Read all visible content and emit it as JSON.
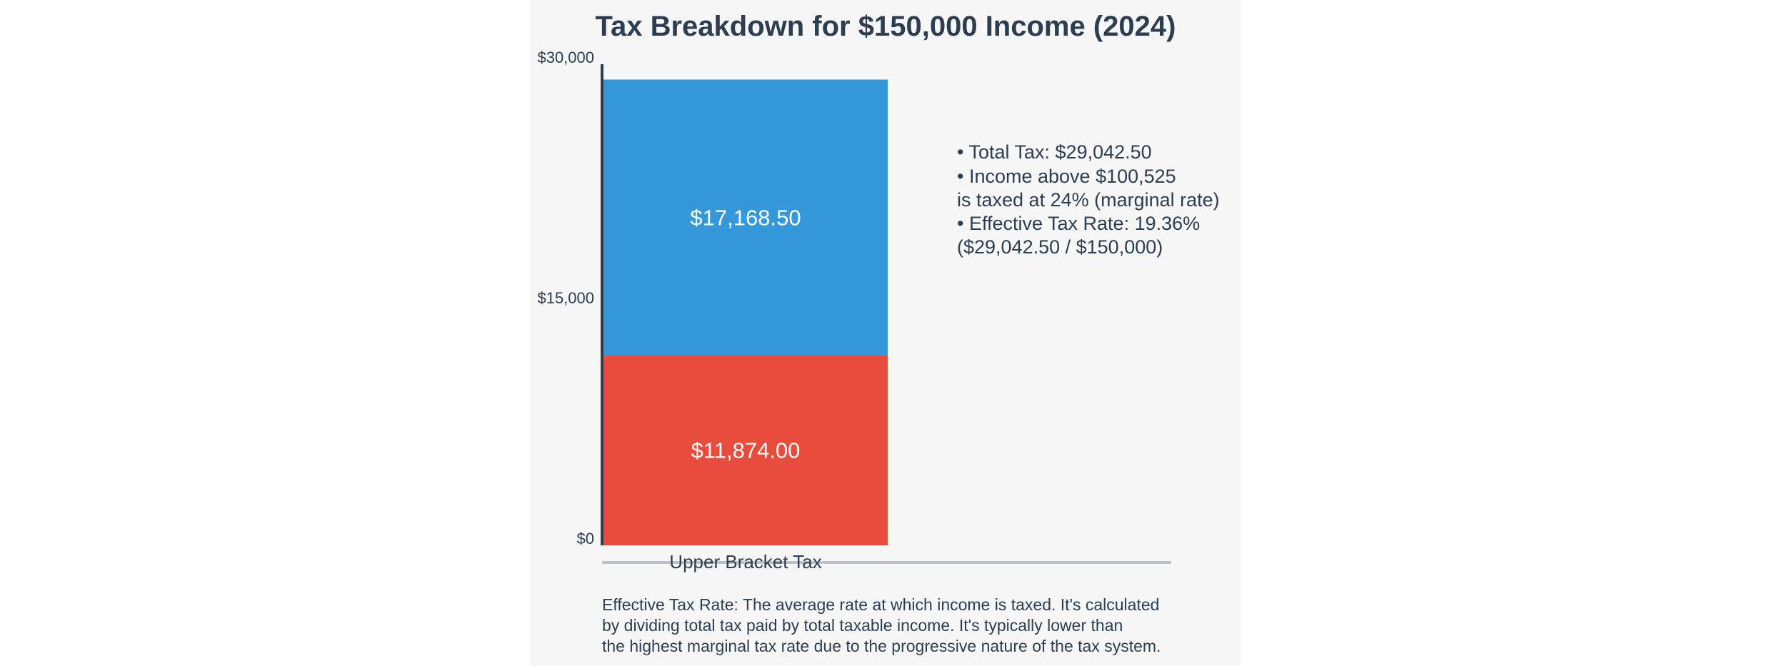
{
  "chart_data": {
    "type": "bar",
    "stacked": true,
    "title": "Tax Breakdown for $150,000 Income (2024)",
    "categories": [
      "Upper Bracket Tax"
    ],
    "series": [
      {
        "values": [
          11874.0
        ],
        "color": "#e74c3c",
        "label": "$11,874.00"
      },
      {
        "values": [
          17168.5
        ],
        "color": "#3498db",
        "label": "$17,168.50"
      }
    ],
    "ylim": [
      0,
      30000
    ],
    "yticks": [
      {
        "value": 0,
        "label": "$0"
      },
      {
        "value": 15000,
        "label": "$15,000"
      },
      {
        "value": 30000,
        "label": "$30,000"
      }
    ],
    "grid": false,
    "annotation_lines": [
      "• Total Tax: $29,042.50",
      "• Income above $100,525",
      "is taxed at 24% (marginal rate)",
      "• Effective Tax Rate: 19.36%",
      "($29,042.50 / $150,000)"
    ],
    "footer_lines": [
      "Effective Tax Rate: The average rate at which income is taxed. It's calculated",
      "by dividing total tax paid by total taxable income. It's typically lower than",
      "the highest marginal tax rate due to the progressive nature of the tax system."
    ]
  },
  "colors": {
    "panel_background": "#f7f7f7",
    "text": "#2c3e50",
    "axis": "#2c3e50",
    "baseline": "#bdc3c7"
  }
}
